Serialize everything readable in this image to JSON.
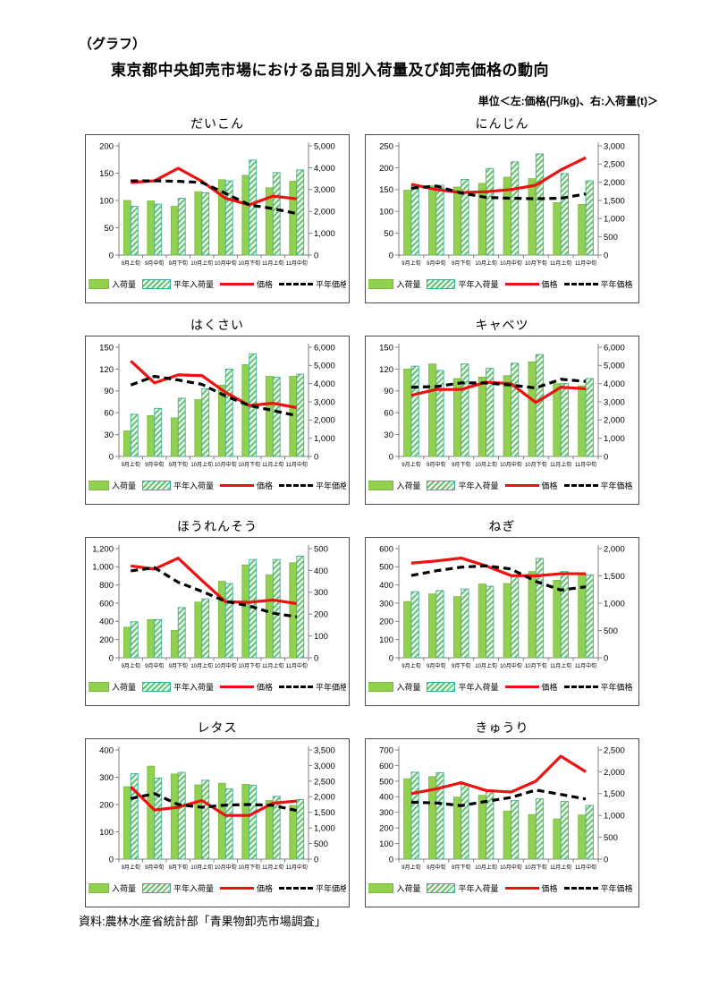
{
  "header": {
    "tag": "（グラフ）",
    "title": "東京都中央卸売市場における品目別入荷量及び卸売価格の動向",
    "unit_note": "単位＜左:価格(円/kg)、右:入荷量(t)＞"
  },
  "footer": {
    "source": "資料:農林水産省統計部「青果物卸売市場調査」"
  },
  "legend": {
    "arrival": "入荷量",
    "normal_arrival": "平年入荷量",
    "price": "価格",
    "normal_price": "平年価格"
  },
  "categories": [
    "9月上旬",
    "9月中旬",
    "9月下旬",
    "10月上旬",
    "10月中旬",
    "10月下旬",
    "11月上旬",
    "11月中旬"
  ],
  "colors": {
    "bar_arrival": "#92d050",
    "bar_arrival_border": "#7ab93e",
    "hatch_bg": "#ecf7f2",
    "hatch_stripe": "#55bd58",
    "hatch_border": "#3fad9e",
    "price_line": "#ee1111",
    "normal_price_line": "#000000",
    "axis": "#808080"
  },
  "chart_layout": {
    "grid": "2x4",
    "gridlines": false,
    "legend_position": "bottom-inside",
    "left_axis": "価格(円/kg)",
    "right_axis": "入荷量(t)"
  },
  "chart_data": [
    {
      "type": "combo_bar_line",
      "title": "だいこん",
      "left_axis": {
        "min": 0,
        "max": 200,
        "step": 50
      },
      "right_axis": {
        "min": 0,
        "max": 5000,
        "step": 1000
      },
      "arrival_t": [
        2500,
        2480,
        2230,
        2900,
        3450,
        3650,
        3080,
        3380
      ],
      "normal_arrival_t": [
        2230,
        2330,
        2600,
        2850,
        3400,
        4350,
        3780,
        3900
      ],
      "price_yen": [
        133,
        136,
        159,
        135,
        104,
        92,
        108,
        103
      ],
      "normal_price_yen": [
        136,
        136,
        135,
        133,
        113,
        92,
        85,
        76
      ]
    },
    {
      "type": "combo_bar_line",
      "title": "にんじん",
      "left_axis": {
        "min": 0,
        "max": 250,
        "step": 50
      },
      "right_axis": {
        "min": 0,
        "max": 3000,
        "step": 500
      },
      "arrival_t": [
        1780,
        1900,
        1870,
        1970,
        2140,
        2100,
        1440,
        1390
      ],
      "normal_arrival_t": [
        1920,
        1920,
        2080,
        2380,
        2560,
        2780,
        2240,
        2040
      ],
      "price_yen": [
        162,
        150,
        143,
        145,
        150,
        160,
        195,
        223
      ],
      "normal_price_yen": [
        153,
        158,
        142,
        132,
        130,
        129,
        130,
        140
      ]
    },
    {
      "type": "combo_bar_line",
      "title": "はくさい",
      "left_axis": {
        "min": 0,
        "max": 150,
        "step": 30
      },
      "right_axis": {
        "min": 0,
        "max": 6000,
        "step": 1000
      },
      "arrival_t": [
        1400,
        2240,
        2120,
        3120,
        3920,
        5040,
        4400,
        4400
      ],
      "normal_arrival_t": [
        2320,
        2640,
        3200,
        3720,
        4800,
        5640,
        4360,
        4520
      ],
      "price_yen": [
        131,
        101,
        112,
        111,
        88,
        70,
        73,
        67
      ],
      "normal_price_yen": [
        98,
        110,
        105,
        99,
        83,
        70,
        63,
        56
      ]
    },
    {
      "type": "combo_bar_line",
      "title": "キャベツ",
      "left_axis": {
        "min": 0,
        "max": 150,
        "step": 30
      },
      "right_axis": {
        "min": 0,
        "max": 6000,
        "step": 1000
      },
      "arrival_t": [
        4800,
        5080,
        4280,
        4360,
        4440,
        5200,
        4000,
        3880
      ],
      "normal_arrival_t": [
        4960,
        4720,
        5080,
        4840,
        5120,
        5600,
        4000,
        4280
      ],
      "price_yen": [
        84,
        92,
        92,
        102,
        100,
        74,
        95,
        93
      ],
      "normal_price_yen": [
        95,
        96,
        101,
        101,
        98,
        94,
        106,
        103
      ]
    },
    {
      "type": "combo_bar_line",
      "title": "ほうれんそう",
      "left_axis": {
        "min": 0,
        "max": 1200,
        "step": 200
      },
      "right_axis": {
        "min": 0,
        "max": 500,
        "step": 100
      },
      "arrival_t": [
        140,
        175,
        125,
        255,
        350,
        425,
        380,
        435
      ],
      "normal_arrival_t": [
        165,
        175,
        230,
        270,
        340,
        450,
        450,
        465
      ],
      "price_yen": [
        1010,
        975,
        1095,
        850,
        615,
        610,
        635,
        595
      ],
      "normal_price_yen": [
        955,
        990,
        830,
        730,
        620,
        570,
        490,
        450
      ]
    },
    {
      "type": "combo_bar_line",
      "title": "ねぎ",
      "left_axis": {
        "min": 0,
        "max": 600,
        "step": 100
      },
      "right_axis": {
        "min": 0,
        "max": 2000,
        "step": 500
      },
      "arrival_t": [
        1030,
        1170,
        1120,
        1350,
        1360,
        1580,
        1420,
        1520
      ],
      "normal_arrival_t": [
        1210,
        1230,
        1260,
        1310,
        1500,
        1820,
        1580,
        1520
      ],
      "price_yen": [
        520,
        532,
        548,
        505,
        452,
        450,
        462,
        462
      ],
      "normal_price_yen": [
        452,
        478,
        498,
        505,
        488,
        420,
        372,
        390
      ]
    },
    {
      "type": "combo_bar_line",
      "title": "レタス",
      "left_axis": {
        "min": 0,
        "max": 400,
        "step": 100
      },
      "right_axis": {
        "min": 0,
        "max": 3500,
        "step": 500
      },
      "arrival_t": [
        2320,
        2980,
        2730,
        2380,
        2430,
        2400,
        1880,
        1720
      ],
      "normal_arrival_t": [
        2740,
        2600,
        2780,
        2530,
        2250,
        2370,
        2010,
        1910
      ],
      "price_yen": [
        265,
        180,
        190,
        215,
        160,
        160,
        205,
        213
      ],
      "normal_price_yen": [
        222,
        240,
        200,
        190,
        198,
        200,
        197,
        178
      ]
    },
    {
      "type": "combo_bar_line",
      "title": "きゅうり",
      "left_axis": {
        "min": 0,
        "max": 700,
        "step": 100
      },
      "right_axis": {
        "min": 0,
        "max": 2500,
        "step": 500
      },
      "arrival_t": [
        1840,
        1890,
        1420,
        1460,
        1100,
        1020,
        920,
        1010
      ],
      "normal_arrival_t": [
        1990,
        1980,
        1710,
        1560,
        1340,
        1380,
        1320,
        1230
      ],
      "price_yen": [
        420,
        450,
        490,
        440,
        430,
        500,
        660,
        560
      ],
      "normal_price_yen": [
        365,
        360,
        343,
        370,
        395,
        443,
        415,
        385
      ]
    }
  ]
}
